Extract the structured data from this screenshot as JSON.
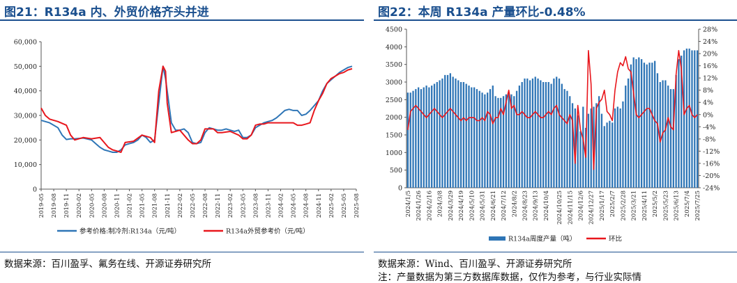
{
  "left": {
    "title": "图21：R134a 内、外贸价格齐头并进",
    "source": "数据来源：百川盈孚、氟务在线、开源证券研究所"
  },
  "right": {
    "title": "图22：本周 R134a 产量环比-0.48%",
    "source": "数据来源：Wind、百川盈孚、开源证券研究所",
    "note": "注：产量数据为第三方数据库数据，仅作为参考，与行业实际情"
  },
  "chart_data": [
    {
      "type": "line",
      "ylim": [
        0,
        60000
      ],
      "ytick_labels": [
        "0",
        "10,000",
        "20,000",
        "30,000",
        "40,000",
        "50,000",
        "60,000"
      ],
      "x_tick_labels": [
        "2019-05",
        "2019-08",
        "2019-11",
        "2020-02",
        "2020-05",
        "2020-08",
        "2020-11",
        "2021-02",
        "2021-05",
        "2021-08",
        "2021-11",
        "2022-02",
        "2022-05",
        "2022-08",
        "2022-11",
        "2023-02",
        "2023-05",
        "2023-08",
        "2023-11",
        "2024-02",
        "2024-05",
        "2024-08",
        "2024-11",
        "2025-02",
        "2025-05",
        "2025-08"
      ],
      "series": [
        {
          "name": "参考价格:制冷剂:R134a（元/吨）",
          "color": "#2e75b6",
          "points": [
            [
              "2019-05",
              28000
            ],
            [
              "2019-07",
              27000
            ],
            [
              "2019-09",
              25000
            ],
            [
              "2019-10",
              22000
            ],
            [
              "2019-11",
              20200
            ],
            [
              "2019-12",
              20500
            ],
            [
              "2020-01",
              20500
            ],
            [
              "2020-03",
              20800
            ],
            [
              "2020-05",
              20000
            ],
            [
              "2020-06",
              18500
            ],
            [
              "2020-07",
              17000
            ],
            [
              "2020-08",
              16000
            ],
            [
              "2020-09",
              15500
            ],
            [
              "2020-10",
              15000
            ],
            [
              "2020-11",
              15000
            ],
            [
              "2020-12",
              16000
            ],
            [
              "2021-01",
              18000
            ],
            [
              "2021-02",
              18500
            ],
            [
              "2021-03",
              19000
            ],
            [
              "2021-04",
              20000
            ],
            [
              "2021-05",
              22000
            ],
            [
              "2021-06",
              21000
            ],
            [
              "2021-07",
              19000
            ],
            [
              "2021-08",
              20000
            ],
            [
              "2021-09",
              35000
            ],
            [
              "2021-10",
              50000
            ],
            [
              "2021-10.6",
              45000
            ],
            [
              "2021-11",
              40000
            ],
            [
              "2021-12",
              27000
            ],
            [
              "2022-01",
              24000
            ],
            [
              "2022-02",
              24000
            ],
            [
              "2022-03",
              24500
            ],
            [
              "2022-04",
              23000
            ],
            [
              "2022-05",
              19000
            ],
            [
              "2022-06",
              18500
            ],
            [
              "2022-07",
              19000
            ],
            [
              "2022-08",
              23000
            ],
            [
              "2022-09",
              25000
            ],
            [
              "2022-10",
              24500
            ],
            [
              "2022-11",
              24000
            ],
            [
              "2022-12",
              24000
            ],
            [
              "2023-01",
              24500
            ],
            [
              "2023-02",
              24000
            ],
            [
              "2023-03",
              23500
            ],
            [
              "2023-04",
              24000
            ],
            [
              "2023-05",
              21000
            ],
            [
              "2023-06",
              21000
            ],
            [
              "2023-07",
              22000
            ],
            [
              "2023-08",
              25000
            ],
            [
              "2023-09",
              26000
            ],
            [
              "2023-10",
              27000
            ],
            [
              "2023-11",
              27500
            ],
            [
              "2023-12",
              28000
            ],
            [
              "2024-01",
              29000
            ],
            [
              "2024-02",
              30500
            ],
            [
              "2024-03",
              32000
            ],
            [
              "2024-04",
              32500
            ],
            [
              "2024-05",
              32000
            ],
            [
              "2024-06",
              32000
            ],
            [
              "2024-07",
              30000
            ],
            [
              "2024-08",
              30500
            ],
            [
              "2024-09",
              32000
            ],
            [
              "2024-10",
              34000
            ],
            [
              "2024-11",
              36000
            ],
            [
              "2024-12",
              40000
            ],
            [
              "2025-01",
              43000
            ],
            [
              "2025-02",
              44500
            ],
            [
              "2025-03",
              46000
            ],
            [
              "2025-04",
              47500
            ],
            [
              "2025-05",
              48500
            ],
            [
              "2025-06",
              49500
            ],
            [
              "2025-07",
              50000
            ]
          ]
        },
        {
          "name": "R134a外贸参考价（元/吨）",
          "color": "#e8161c",
          "points": [
            [
              "2019-05",
              33000
            ],
            [
              "2019-06",
              30000
            ],
            [
              "2019-07",
              28500
            ],
            [
              "2019-09",
              27500
            ],
            [
              "2019-11",
              26000
            ],
            [
              "2019-12",
              22000
            ],
            [
              "2020-01",
              20000
            ],
            [
              "2020-02",
              20500
            ],
            [
              "2020-03",
              21000
            ],
            [
              "2020-05",
              20500
            ],
            [
              "2020-07",
              21000
            ],
            [
              "2020-08",
              19000
            ],
            [
              "2020-09",
              17000
            ],
            [
              "2020-10",
              16000
            ],
            [
              "2020-11",
              15500
            ],
            [
              "2020-12",
              15000
            ],
            [
              "2021-01",
              19000
            ],
            [
              "2021-03",
              19500
            ],
            [
              "2021-05",
              22000
            ],
            [
              "2021-07",
              21000
            ],
            [
              "2021-08",
              19000
            ],
            [
              "2021-09",
              40000
            ],
            [
              "2021-10",
              50000
            ],
            [
              "2021-10.6",
              48000
            ],
            [
              "2021-11",
              35000
            ],
            [
              "2021-12",
              23000
            ],
            [
              "2022-02",
              24000
            ],
            [
              "2022-03",
              22000
            ],
            [
              "2022-04",
              20000
            ],
            [
              "2022-05",
              18500
            ],
            [
              "2022-06",
              18500
            ],
            [
              "2022-07",
              20000
            ],
            [
              "2022-08",
              24500
            ],
            [
              "2022-09",
              24500
            ],
            [
              "2022-10",
              24500
            ],
            [
              "2022-11",
              23000
            ],
            [
              "2022-12",
              23000
            ],
            [
              "2023-02",
              23500
            ],
            [
              "2023-04",
              22000
            ],
            [
              "2023-05",
              20500
            ],
            [
              "2023-06",
              20500
            ],
            [
              "2023-07",
              22000
            ],
            [
              "2023-08",
              26000
            ],
            [
              "2023-09",
              26500
            ],
            [
              "2023-10",
              26500
            ],
            [
              "2023-11",
              27000
            ],
            [
              "2023-12",
              27000
            ],
            [
              "2024-02",
              27000
            ],
            [
              "2024-04",
              27000
            ],
            [
              "2024-05",
              27000
            ],
            [
              "2024-06",
              26000
            ],
            [
              "2024-07",
              26000
            ],
            [
              "2024-08",
              26500
            ],
            [
              "2024-09",
              27000
            ],
            [
              "2024-10",
              32000
            ],
            [
              "2024-11",
              36000
            ],
            [
              "2024-12",
              39000
            ],
            [
              "2025-01",
              43000
            ],
            [
              "2025-02",
              45000
            ],
            [
              "2025-03",
              46000
            ],
            [
              "2025-04",
              47000
            ],
            [
              "2025-05",
              47500
            ],
            [
              "2025-06",
              48500
            ],
            [
              "2025-07",
              49000
            ]
          ]
        }
      ]
    },
    {
      "type": "bar+line",
      "ylim": [
        0,
        4500
      ],
      "y2lim": [
        -0.24,
        0.28
      ],
      "ytick_labels": [
        "0",
        "500",
        "1000",
        "1500",
        "2000",
        "2500",
        "3000",
        "3500",
        "4000",
        "4500"
      ],
      "y2tick_labels": [
        "-24%",
        "-20%",
        "-16%",
        "-12%",
        "-8%",
        "-4%",
        "0%",
        "4%",
        "8%",
        "12%",
        "16%",
        "20%",
        "24%",
        "28%"
      ],
      "x_tick_labels": [
        "2024/1/5",
        "2024/1/26",
        "2024/2/16",
        "2024/3/8",
        "2024/3/29",
        "2024/4/19",
        "2024/5/10",
        "2024/5/31",
        "2024/6/21",
        "2024/7/12",
        "2024/8/2",
        "2024/8/23",
        "2024/9/13",
        "2024/10/4",
        "2024/10/25",
        "2024/11/15",
        "2024/12/6",
        "2024/12/27",
        "2025/1/17",
        "2025/2/7",
        "2025/2/28",
        "2025/3/21",
        "2025/4/11",
        "2025/5/2",
        "2025/5/23",
        "2025/6/13",
        "2025/7/4",
        "2025/7/25"
      ],
      "series": [
        {
          "name": "R134a周度产量（吨）",
          "color": "#2e75b6",
          "values": [
            2700,
            2700,
            2750,
            2800,
            2850,
            2800,
            2850,
            2900,
            2850,
            2900,
            2950,
            3000,
            3050,
            3100,
            3200,
            3200,
            3250,
            3150,
            3100,
            3050,
            3000,
            3000,
            2950,
            2900,
            2850,
            2850,
            2800,
            2750,
            2700,
            2650,
            2700,
            2800,
            2900,
            2600,
            2550,
            2550,
            2600,
            2650,
            2700,
            2650,
            2600,
            2750,
            2900,
            3000,
            3100,
            3100,
            3050,
            3100,
            3150,
            3100,
            3050,
            3000,
            3000,
            3000,
            2950,
            3100,
            3150,
            3100,
            2950,
            2800,
            2750,
            2600,
            2400,
            2250,
            2050,
            1600,
            2300,
            1700,
            2100,
            2250,
            2300,
            2400,
            2600,
            2100,
            1750,
            1850,
            1900,
            1850,
            2250,
            2300,
            2250,
            2450,
            2900,
            3100,
            3500,
            3700,
            3650,
            3700,
            3650,
            3550,
            3500,
            3550,
            3550,
            3600,
            3250,
            3000,
            3050,
            3050,
            2900,
            2800,
            2800,
            3200,
            3650,
            3750,
            3900,
            3950,
            3950,
            3900,
            3900,
            3900
          ]
        },
        {
          "name": "环比",
          "color": "#e8161c",
          "values": [
            -0.05,
            0.01,
            0.02,
            0.03,
            0.02,
            0.01,
            0.0,
            -0.01,
            0.0,
            0.01,
            0.02,
            0.01,
            0.0,
            -0.01,
            0.0,
            0.01,
            0.02,
            0.01,
            0.0,
            -0.01,
            -0.02,
            -0.01,
            -0.02,
            -0.01,
            -0.01,
            -0.01,
            -0.02,
            -0.02,
            -0.01,
            -0.02,
            0.01,
            0.0,
            -0.03,
            -0.01,
            -0.01,
            0.02,
            0.0,
            0.04,
            0.08,
            0.02,
            0.03,
            0.0,
            0.0,
            0.01,
            0.0,
            -0.01,
            -0.01,
            0.0,
            0.01,
            0.0,
            -0.01,
            -0.01,
            0.0,
            0.01,
            0.0,
            0.02,
            0.03,
            0.0,
            -0.01,
            -0.02,
            -0.03,
            0.0,
            -0.02,
            -0.16,
            0.03,
            -0.05,
            -0.08,
            -0.14,
            0.21,
            0.1,
            -0.18,
            0.02,
            0.04,
            0.05,
            0.08,
            0.01,
            0.0,
            -0.02,
            0.08,
            0.14,
            0.17,
            0.16,
            0.19,
            0.15,
            0.14,
            0.07,
            0.0,
            -0.01,
            0.0,
            0.01,
            0.02,
            0.02,
            0.0,
            -0.02,
            -0.03,
            -0.09,
            -0.06,
            -0.05,
            -0.01,
            -0.04,
            -0.05,
            0.13,
            0.21,
            0.15,
            0.0,
            0.02,
            0.03,
            0.0,
            -0.01,
            0.0
          ]
        }
      ]
    }
  ]
}
